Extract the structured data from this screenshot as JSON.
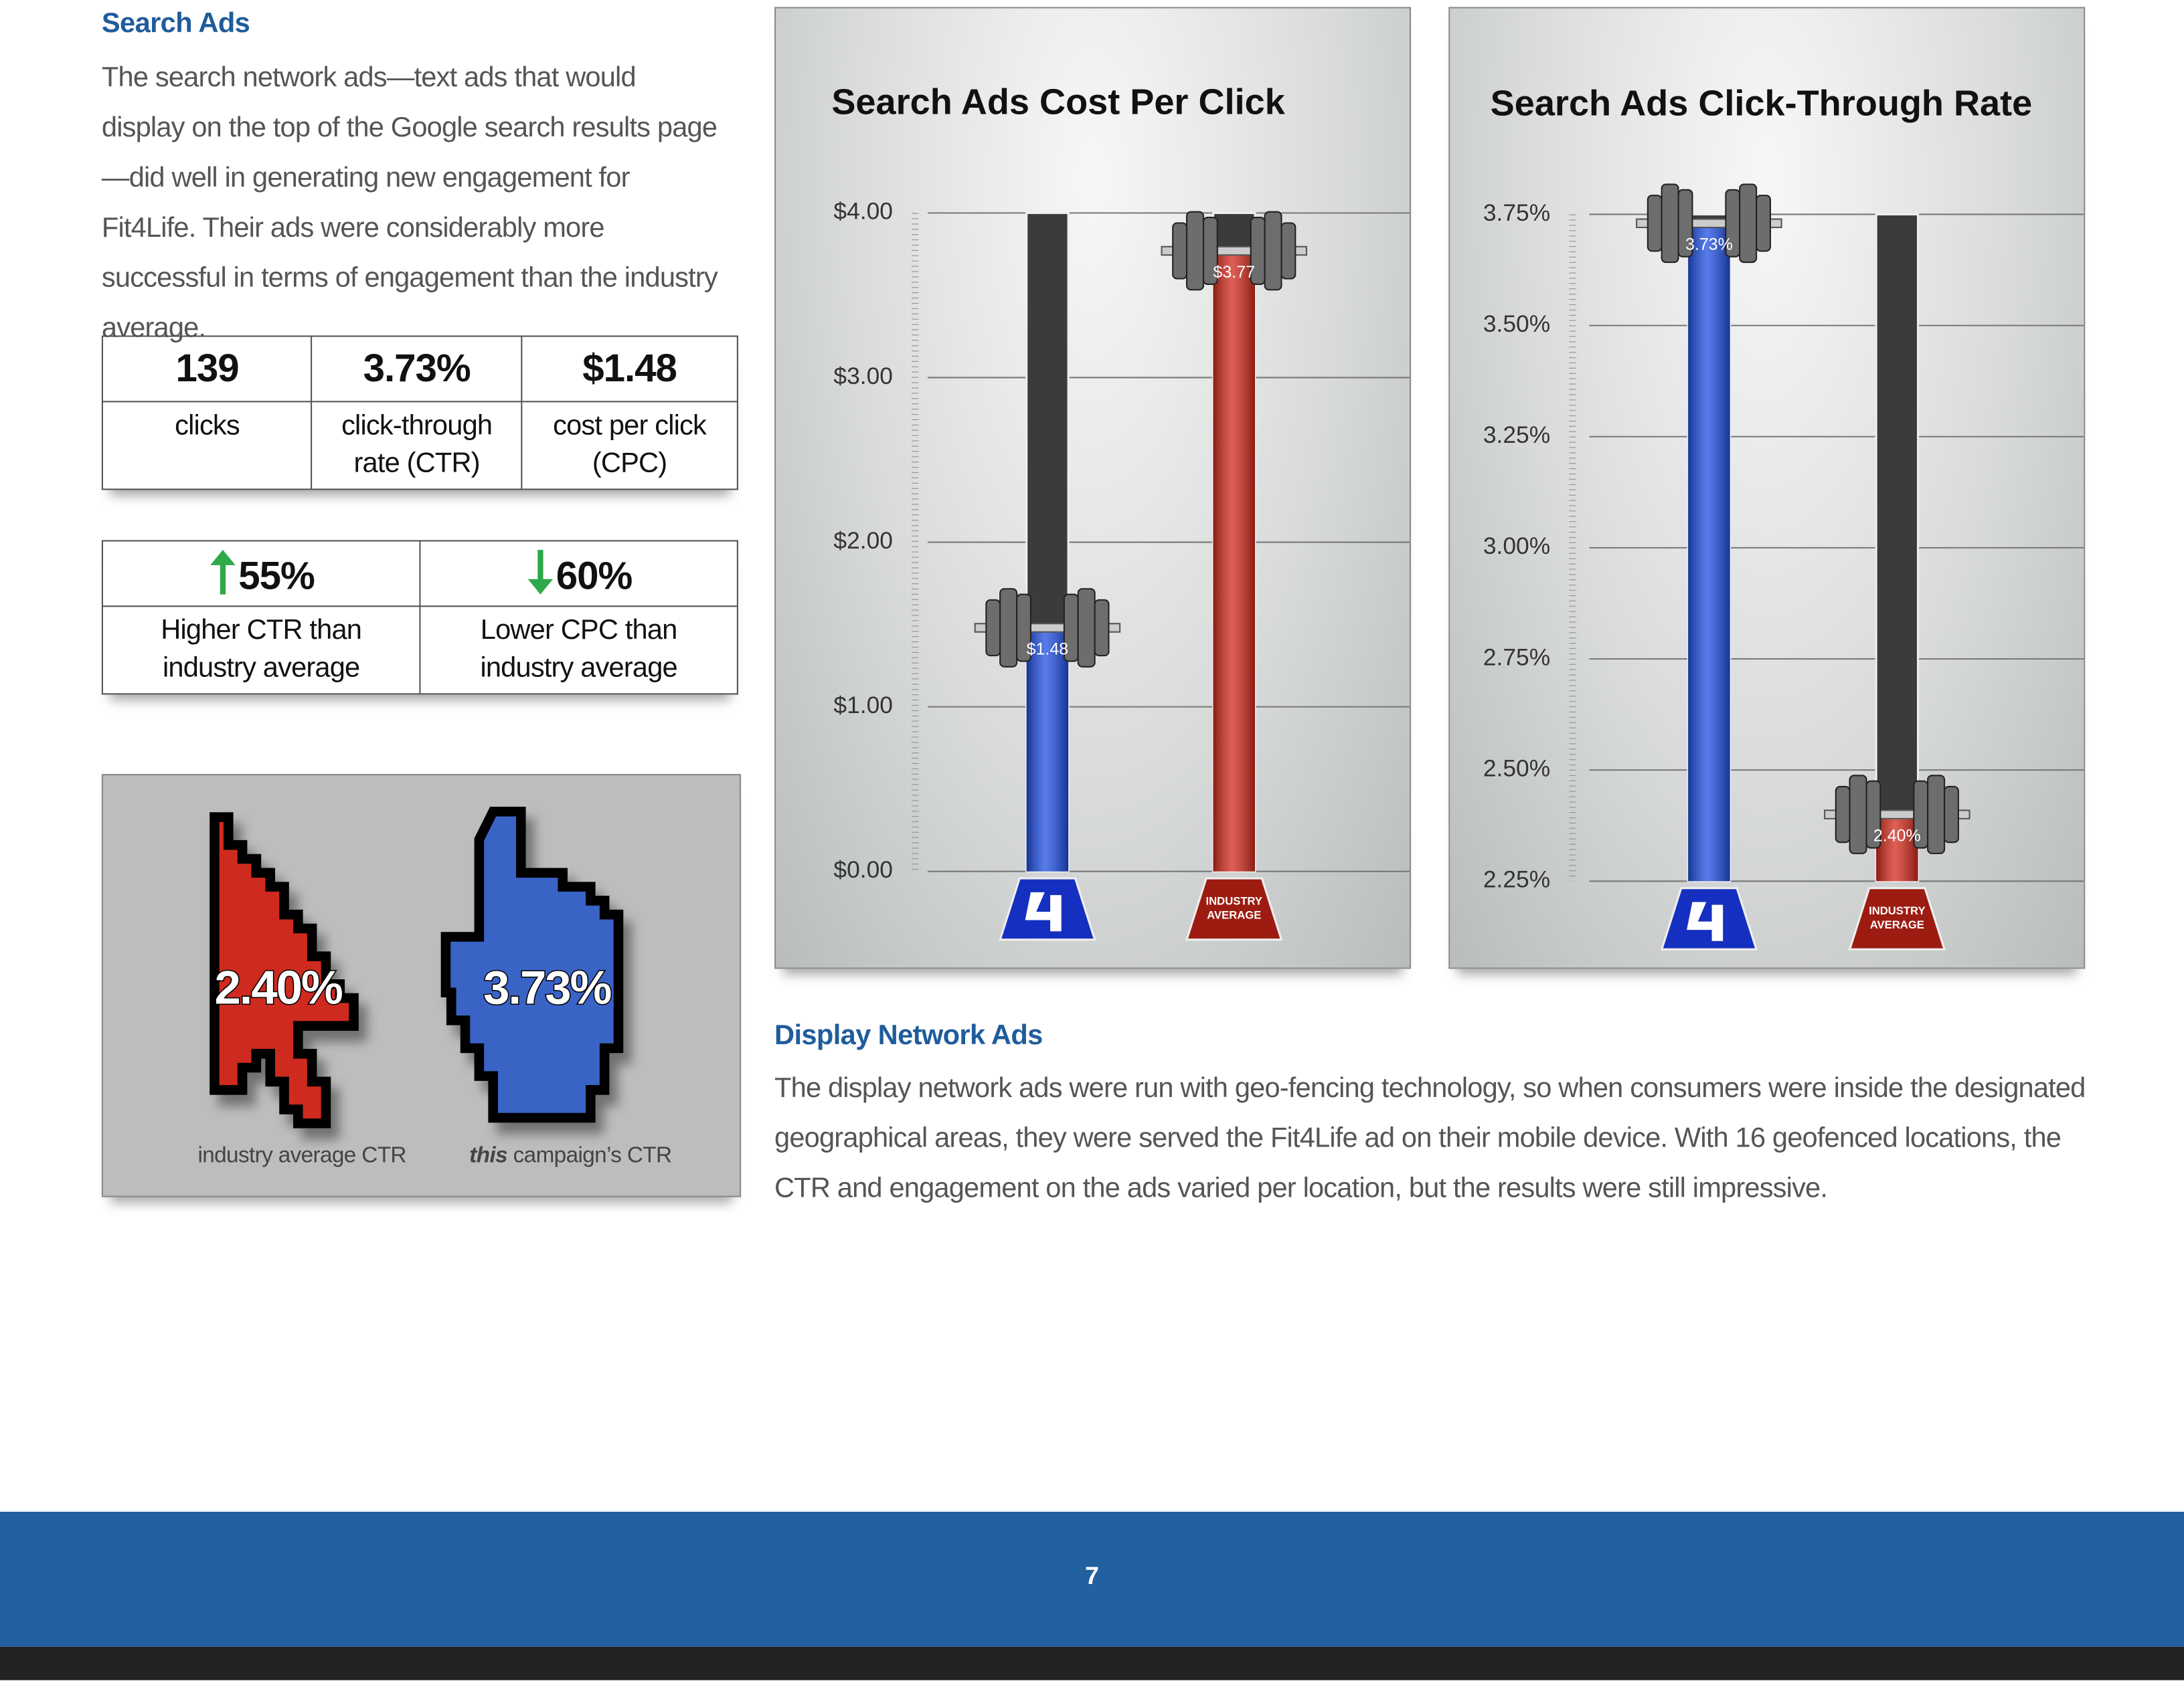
{
  "search_ads": {
    "heading": "Search Ads",
    "body": "The search network ads—text ads that would display on the top of the Google search results page—did well in generating new engagement for Fit4Life. Their ads were considerably more successful in terms of engagement than the industry average."
  },
  "stats": [
    {
      "value": "139",
      "label": "clicks"
    },
    {
      "value": "3.73%",
      "label": "click-through rate (CTR)"
    },
    {
      "value": "$1.48",
      "label": "cost per click (CPC)"
    }
  ],
  "comparison": [
    {
      "value": "55%",
      "label": "Higher CTR than industry average"
    },
    {
      "value": "60%",
      "label": "Lower CPC than industry average"
    }
  ],
  "cursors": {
    "industry_value": "2.40%",
    "campaign_value": "3.73%",
    "industry_caption": "industry average CTR",
    "campaign_caption_emphasis": "this",
    "campaign_caption": "campaign’s CTR"
  },
  "chart_data": [
    {
      "type": "bar",
      "title": "Search Ads Cost Per Click",
      "categories": [
        null,
        "INDUSTRY AVERAGE"
      ],
      "values": [
        1.48,
        3.77
      ],
      "value_labels": [
        "$1.48",
        "$3.77"
      ],
      "colors": [
        "#1f4fe3",
        "#d42a1c"
      ],
      "ylim": [
        0,
        4
      ],
      "yticks": [
        {
          "value": 0,
          "label": "$0.00"
        },
        {
          "value": 1,
          "label": "$1.00"
        },
        {
          "value": 2,
          "label": "$2.00"
        },
        {
          "value": 3,
          "label": "$3.00"
        },
        {
          "value": 4,
          "label": "$4.00"
        }
      ],
      "grid": true
    },
    {
      "type": "bar",
      "title": "Search Ads Click-Through Rate",
      "categories": [
        null,
        "INDUSTRY AVERAGE"
      ],
      "values": [
        3.73,
        2.4
      ],
      "value_labels": [
        "3.73%",
        "2.40%"
      ],
      "colors": [
        "#1f4fe3",
        "#d42a1c"
      ],
      "ylim": [
        2.25,
        3.75
      ],
      "yticks": [
        {
          "value": 2.25,
          "label": "2.25%"
        },
        {
          "value": 2.5,
          "label": "2.50%"
        },
        {
          "value": 2.75,
          "label": "2.75%"
        },
        {
          "value": 3,
          "label": "3.00%"
        },
        {
          "value": 3.25,
          "label": "3.25%"
        },
        {
          "value": 3.5,
          "label": "3.50%"
        },
        {
          "value": 3.75,
          "label": "3.75%"
        }
      ],
      "grid": true
    }
  ],
  "display_network": {
    "heading": "Display Network Ads",
    "body": "The display network ads were run with geo-fencing technology, so when consumers were inside the designated geographical areas, they were served the Fit4Life ad on their mobile device. With 16 geofenced locations, the CTR and engagement on the ads varied per location, but the results were still impressive."
  },
  "page_number": "7"
}
